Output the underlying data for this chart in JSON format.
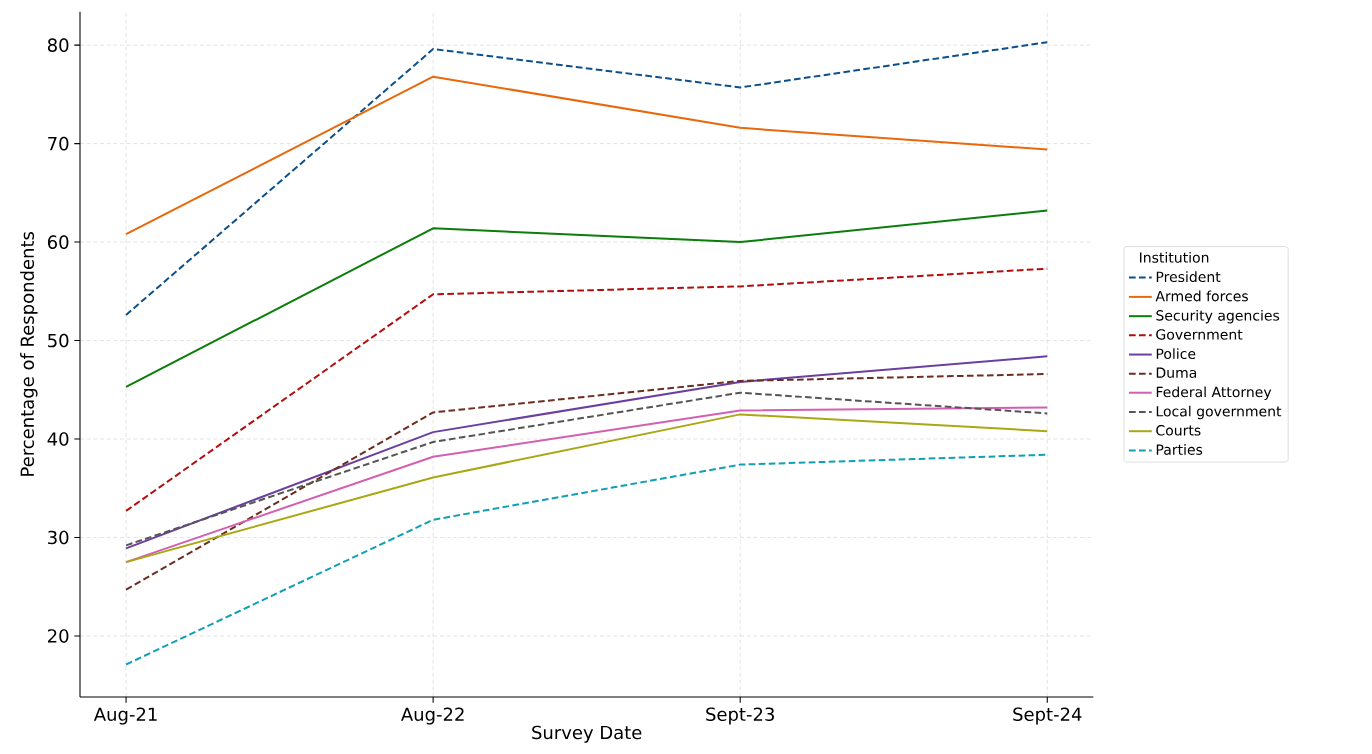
{
  "chart_data": {
    "type": "line",
    "xlabel": "Survey Date",
    "ylabel": "Percentage of Respondents",
    "legend_title": "Institution",
    "categories": [
      "Aug-21",
      "Aug-22",
      "Sept-23",
      "Sept-24"
    ],
    "series": [
      {
        "name": "President",
        "color": "#0d4f8b",
        "line_style": "dashed",
        "values": [
          52.6,
          79.6,
          75.7,
          80.3
        ]
      },
      {
        "name": "Armed forces",
        "color": "#e8680c",
        "line_style": "solid",
        "values": [
          60.8,
          76.8,
          71.6,
          69.4
        ]
      },
      {
        "name": "Security agencies",
        "color": "#0a7d0a",
        "line_style": "solid",
        "values": [
          45.3,
          61.4,
          60.0,
          63.2
        ]
      },
      {
        "name": "Government",
        "color": "#b30e0e",
        "line_style": "dashed",
        "values": [
          32.7,
          54.7,
          55.5,
          57.3
        ]
      },
      {
        "name": "Police",
        "color": "#6a3fa0",
        "line_style": "solid",
        "values": [
          28.9,
          40.7,
          45.8,
          48.4
        ]
      },
      {
        "name": "Duma",
        "color": "#6b2e20",
        "line_style": "dashed",
        "values": [
          24.7,
          42.7,
          45.9,
          46.6
        ]
      },
      {
        "name": "Federal Attorney",
        "color": "#d35fb0",
        "line_style": "solid",
        "values": [
          27.5,
          38.2,
          42.9,
          43.2
        ]
      },
      {
        "name": "Local government",
        "color": "#555555",
        "line_style": "dashed",
        "values": [
          29.2,
          39.7,
          44.7,
          42.6
        ]
      },
      {
        "name": "Courts",
        "color": "#a8a814",
        "line_style": "solid",
        "values": [
          27.5,
          36.1,
          42.5,
          40.8
        ]
      },
      {
        "name": "Parties",
        "color": "#0fa0b4",
        "line_style": "dashed",
        "values": [
          17.1,
          31.8,
          37.4,
          38.4
        ]
      }
    ],
    "ylim": [
      13.8,
      83.4
    ],
    "yticks": [
      20,
      30,
      40,
      50,
      60,
      70,
      80
    ],
    "grid": true,
    "legend": "right"
  }
}
